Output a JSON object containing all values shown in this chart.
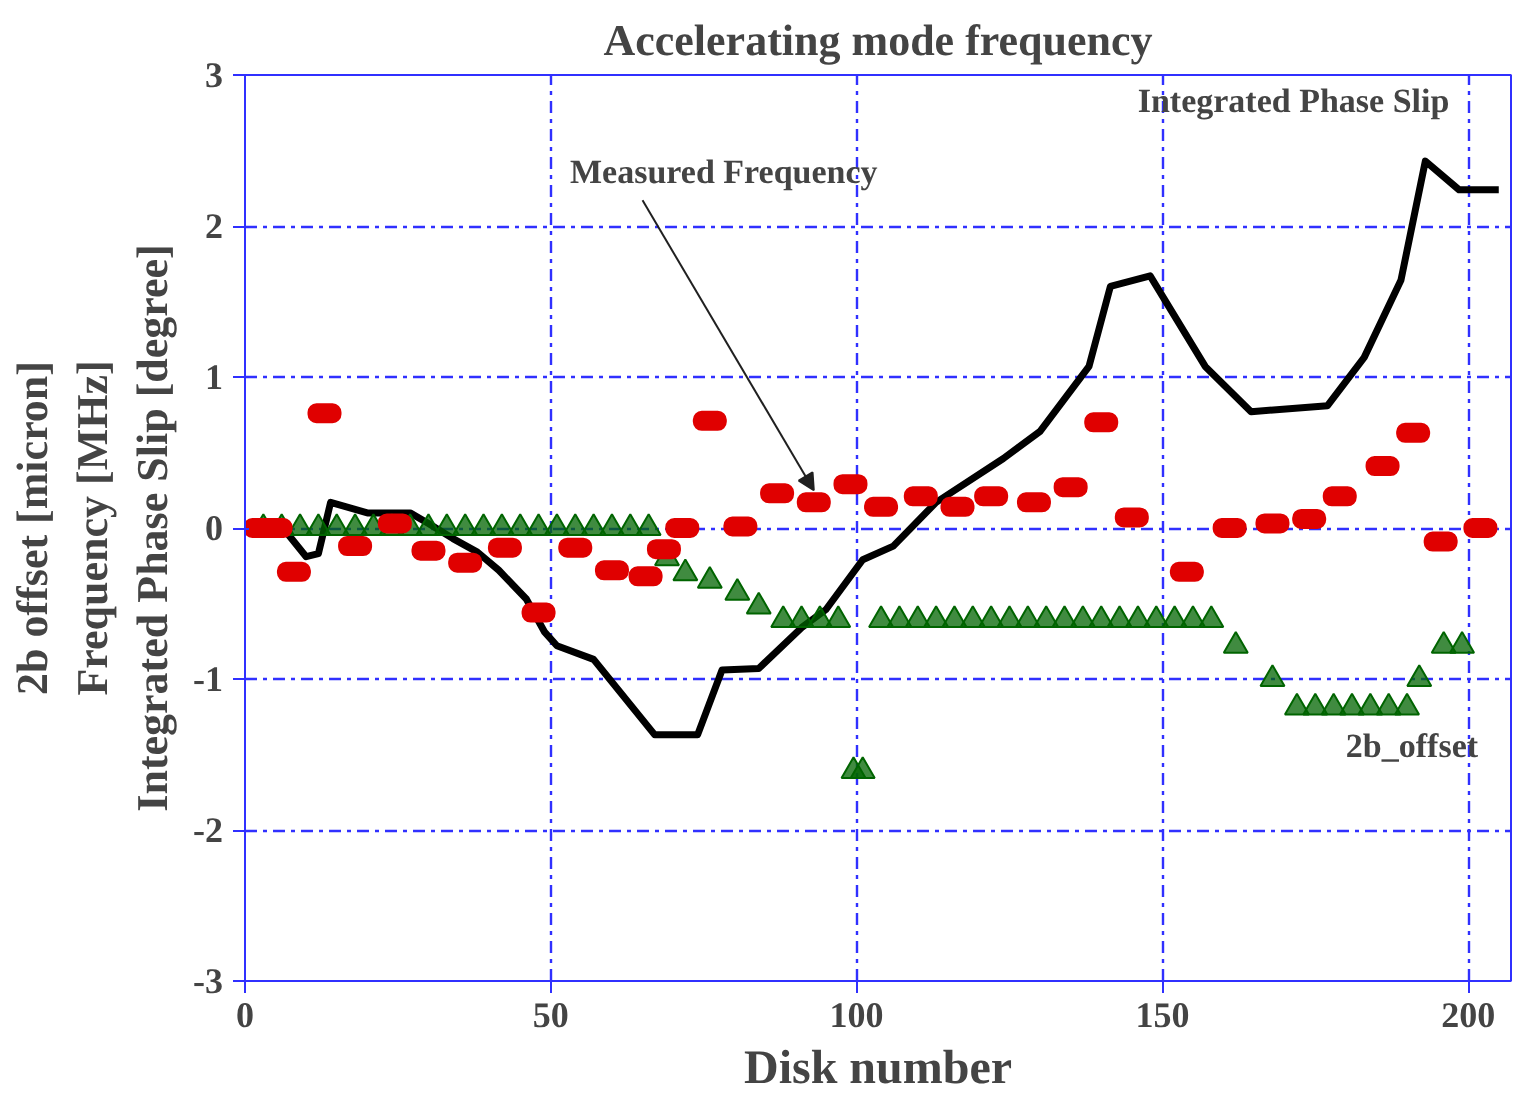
{
  "chart_data": {
    "type": "line",
    "title": "Accelerating mode frequency",
    "xlabel": "Disk number",
    "ylabel": "2b offset [micron]\nFrequency [MHz]\nIntegrated Phase Slip [degree]",
    "xlim": [
      0,
      207
    ],
    "xticks": [
      0,
      50,
      100,
      150,
      200
    ],
    "ylim": [
      -3,
      3
    ],
    "yticks": [
      -3,
      -2,
      -1,
      0,
      1,
      2,
      3
    ],
    "grid": true,
    "series": [
      {
        "name": "Integrated Phase Slip",
        "color": "#000000",
        "marker": "none",
        "line_style": "solid",
        "x": [
          7,
          10,
          12,
          14,
          20,
          27,
          30,
          34,
          38,
          41.5,
          46,
          49,
          51,
          57,
          67,
          74,
          78,
          84,
          91,
          95,
          101,
          106,
          113,
          124,
          130,
          138,
          141.5,
          148,
          157,
          164.5,
          177,
          183,
          189,
          193,
          198.5,
          205
        ],
        "values": [
          -0.04,
          -0.19,
          -0.17,
          0.17,
          0.1,
          0.1,
          0.03,
          -0.07,
          -0.16,
          -0.28,
          -0.47,
          -0.69,
          -0.78,
          -0.87,
          -1.37,
          -1.37,
          -0.94,
          -0.93,
          -0.66,
          -0.54,
          -0.21,
          -0.12,
          0.17,
          0.46,
          0.64,
          1.07,
          1.6,
          1.67,
          1.07,
          0.77,
          0.81,
          1.13,
          1.64,
          2.43,
          2.24,
          2.24
        ]
      },
      {
        "name": "Measured Frequency",
        "type": "scatter",
        "color": "#e00000",
        "marker": "square",
        "x": [
          2.5,
          5,
          8,
          13,
          18,
          24.5,
          30,
          36,
          42.5,
          48,
          54,
          60,
          65.5,
          68.5,
          71.5,
          76,
          81,
          87,
          93,
          99,
          104,
          110.5,
          116.5,
          122,
          129,
          135,
          140,
          145,
          154,
          161,
          168,
          174,
          179,
          186,
          191,
          195.5,
          202
        ],
        "values": [
          0,
          0,
          -0.29,
          0.76,
          -0.12,
          0.03,
          -0.15,
          -0.23,
          -0.13,
          -0.56,
          -0.13,
          -0.28,
          -0.32,
          -0.14,
          0,
          0.71,
          0.01,
          0.23,
          0.17,
          0.29,
          0.14,
          0.21,
          0.14,
          0.21,
          0.17,
          0.27,
          0.7,
          0.07,
          -0.29,
          0,
          0.03,
          0.06,
          0.21,
          0.41,
          0.63,
          -0.09,
          0
        ]
      },
      {
        "name": "2b_offset",
        "type": "scatter",
        "color": "#006400",
        "marker": "triangle",
        "x": [
          3,
          6,
          9,
          12,
          15,
          18,
          21,
          24,
          27,
          30,
          33,
          36,
          39,
          42,
          45,
          48,
          51,
          54,
          57,
          60,
          63,
          66,
          69,
          72,
          76,
          80.5,
          84,
          88,
          91,
          94,
          97,
          99.5,
          101,
          104,
          107,
          110,
          113,
          116,
          119,
          122,
          125,
          128,
          131,
          134,
          137,
          140,
          143,
          146,
          149,
          152,
          155,
          158,
          162,
          168,
          172,
          175,
          178,
          181,
          184,
          187,
          190,
          192,
          196,
          199
        ],
        "values": [
          0,
          0,
          0,
          0,
          0,
          0,
          0,
          0,
          0,
          0,
          0,
          0,
          0,
          0,
          0,
          0,
          0,
          0,
          0,
          0,
          0,
          0,
          -0.2,
          -0.3,
          -0.35,
          -0.43,
          -0.52,
          -0.61,
          -0.61,
          -0.61,
          -0.61,
          -1.61,
          -1.61,
          -0.61,
          -0.61,
          -0.61,
          -0.61,
          -0.61,
          -0.61,
          -0.61,
          -0.61,
          -0.61,
          -0.61,
          -0.61,
          -0.61,
          -0.61,
          -0.61,
          -0.61,
          -0.61,
          -0.61,
          -0.61,
          -0.61,
          -0.78,
          -1.0,
          -1.19,
          -1.19,
          -1.19,
          -1.19,
          -1.19,
          -1.19,
          -1.19,
          -1.0,
          -0.78,
          -0.78
        ]
      }
    ]
  }
}
